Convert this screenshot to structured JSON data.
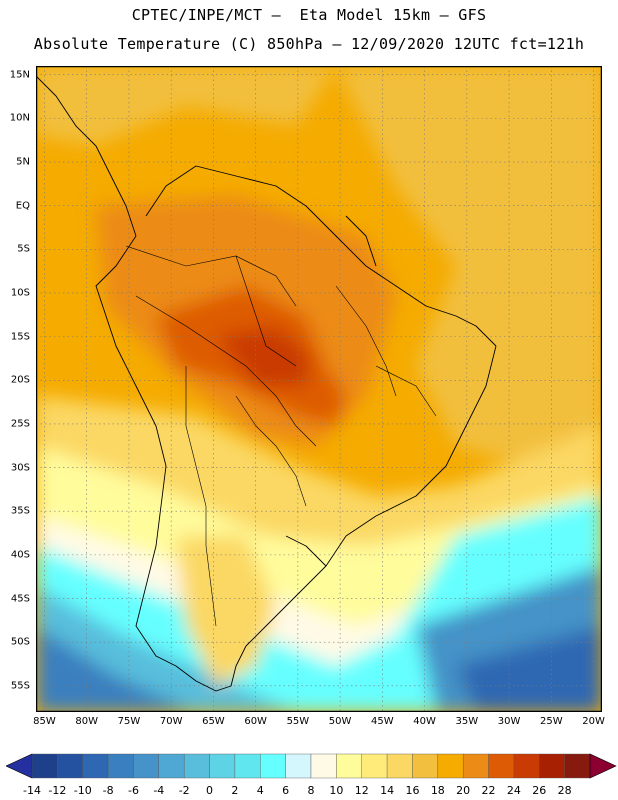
{
  "header": {
    "line1": "CPTEC/INPE/MCT —  Eta Model 15km — GFS",
    "line2": "Absolute Temperature (C) 850hPa — 12/09/2020 12UTC fct=121h"
  },
  "map": {
    "region": "South America",
    "lat_labels": [
      "15N",
      "10N",
      "5N",
      "EQ",
      "5S",
      "10S",
      "15S",
      "20S",
      "25S",
      "30S",
      "35S",
      "40S",
      "45S",
      "50S",
      "55S"
    ],
    "lon_labels": [
      "85W",
      "80W",
      "75W",
      "70W",
      "65W",
      "60W",
      "55W",
      "50W",
      "45W",
      "40W",
      "35W",
      "30W",
      "25W",
      "20W"
    ],
    "lon_range": [
      -86,
      -19
    ],
    "lat_range": [
      16,
      -58
    ],
    "gridlines": true
  },
  "colorbar": {
    "labels": [
      "-14",
      "-12",
      "-10",
      "-8",
      "-6",
      "-4",
      "-2",
      "0",
      "2",
      "4",
      "6",
      "8",
      "10",
      "12",
      "14",
      "16",
      "18",
      "20",
      "22",
      "24",
      "26",
      "28"
    ],
    "colors": [
      "#1e3f8a",
      "#2552a0",
      "#2e67b2",
      "#3a7fbf",
      "#4593c8",
      "#4fa8d3",
      "#59bedc",
      "#5fd3e6",
      "#5fe6ef",
      "#66ffff",
      "#d3f7fc",
      "#fffae6",
      "#fffc9c",
      "#ffeb7a",
      "#fbd863",
      "#f2bf3e",
      "#f5ab00",
      "#ec8b15",
      "#de5b05",
      "#c93a04",
      "#a82002",
      "#861a0e"
    ],
    "under_color": "#2430a0",
    "over_color": "#8b0030"
  }
}
